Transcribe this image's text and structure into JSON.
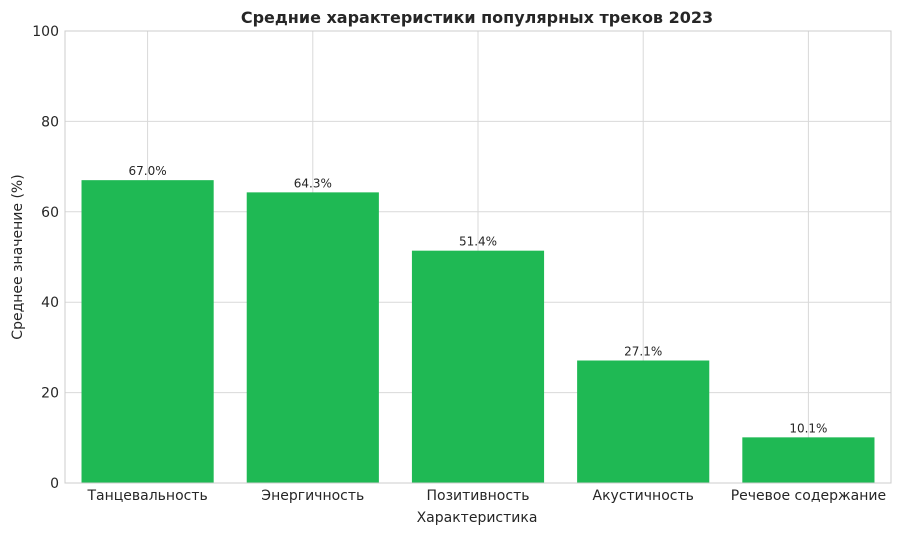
{
  "chart_data": {
    "type": "bar",
    "title": "Средние характеристики популярных треков 2023",
    "xlabel": "Характеристика",
    "ylabel": "Среднее значение (%)",
    "categories": [
      "Танцевальность",
      "Энергичность",
      "Позитивность",
      "Акустичность",
      "Речевое содержание"
    ],
    "values": [
      67.0,
      64.3,
      51.4,
      27.1,
      10.1
    ],
    "value_labels": [
      "67.0%",
      "64.3%",
      "51.4%",
      "27.1%",
      "10.1%"
    ],
    "ylim": [
      0,
      100
    ],
    "yticks": [
      0,
      20,
      40,
      60,
      80,
      100
    ],
    "grid": true,
    "bar_color": "#1fb954"
  }
}
